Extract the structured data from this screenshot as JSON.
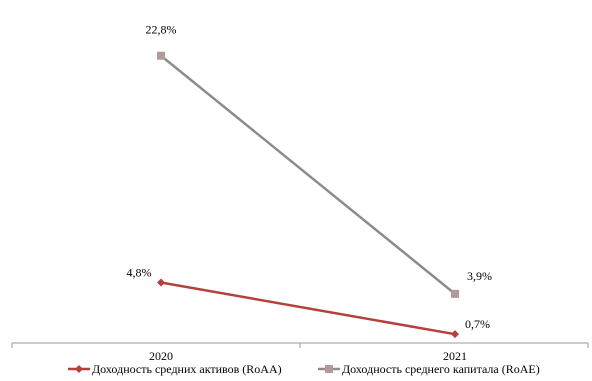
{
  "chart_data": {
    "type": "line",
    "categories": [
      "2020",
      "2021"
    ],
    "ylim": [
      0,
      25
    ],
    "grid": false,
    "legend_position": "bottom",
    "series": [
      {
        "name": "Доходность средних активов (RoAA)",
        "values": [
          4.8,
          0.7
        ],
        "labels": [
          "4,8%",
          "0,7%"
        ],
        "color": "#b5413c",
        "marker": "diamond"
      },
      {
        "name": "Доходность среднего капитала (RoAE)",
        "values": [
          22.8,
          3.9
        ],
        "labels": [
          "22,8%",
          "3,9%"
        ],
        "color": "#8c8c8c",
        "marker_color": "#b39a9a",
        "marker": "square"
      }
    ]
  }
}
